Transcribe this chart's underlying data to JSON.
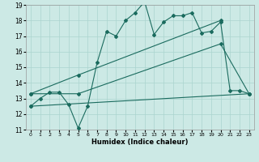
{
  "xlabel": "Humidex (Indice chaleur)",
  "xlim": [
    -0.5,
    23.5
  ],
  "ylim": [
    11,
    19
  ],
  "xticks": [
    0,
    1,
    2,
    3,
    4,
    5,
    6,
    7,
    8,
    9,
    10,
    11,
    12,
    13,
    14,
    15,
    16,
    17,
    18,
    19,
    20,
    21,
    22,
    23
  ],
  "yticks": [
    11,
    12,
    13,
    14,
    15,
    16,
    17,
    18,
    19
  ],
  "bg_color": "#cce9e5",
  "grid_color": "#aad4cf",
  "line_color": "#1a6b5e",
  "line1_x": [
    0,
    1,
    2,
    3,
    4,
    5,
    6,
    7,
    8,
    9,
    10,
    11,
    12,
    13,
    14,
    15,
    16,
    17,
    18,
    19,
    20,
    21,
    22,
    23
  ],
  "line1_y": [
    12.5,
    13.0,
    13.4,
    13.4,
    12.6,
    11.1,
    12.5,
    15.3,
    17.3,
    17.0,
    18.0,
    18.5,
    19.2,
    17.1,
    17.9,
    18.3,
    18.3,
    18.5,
    17.2,
    17.3,
    17.9,
    13.5,
    13.5,
    13.3
  ],
  "line2_x": [
    0,
    5,
    20,
    23
  ],
  "line2_y": [
    13.3,
    13.3,
    16.5,
    13.3
  ],
  "line3_x": [
    0,
    5,
    20
  ],
  "line3_y": [
    13.3,
    14.5,
    18.0
  ],
  "line4_x": [
    0,
    23
  ],
  "line4_y": [
    12.5,
    13.3
  ]
}
